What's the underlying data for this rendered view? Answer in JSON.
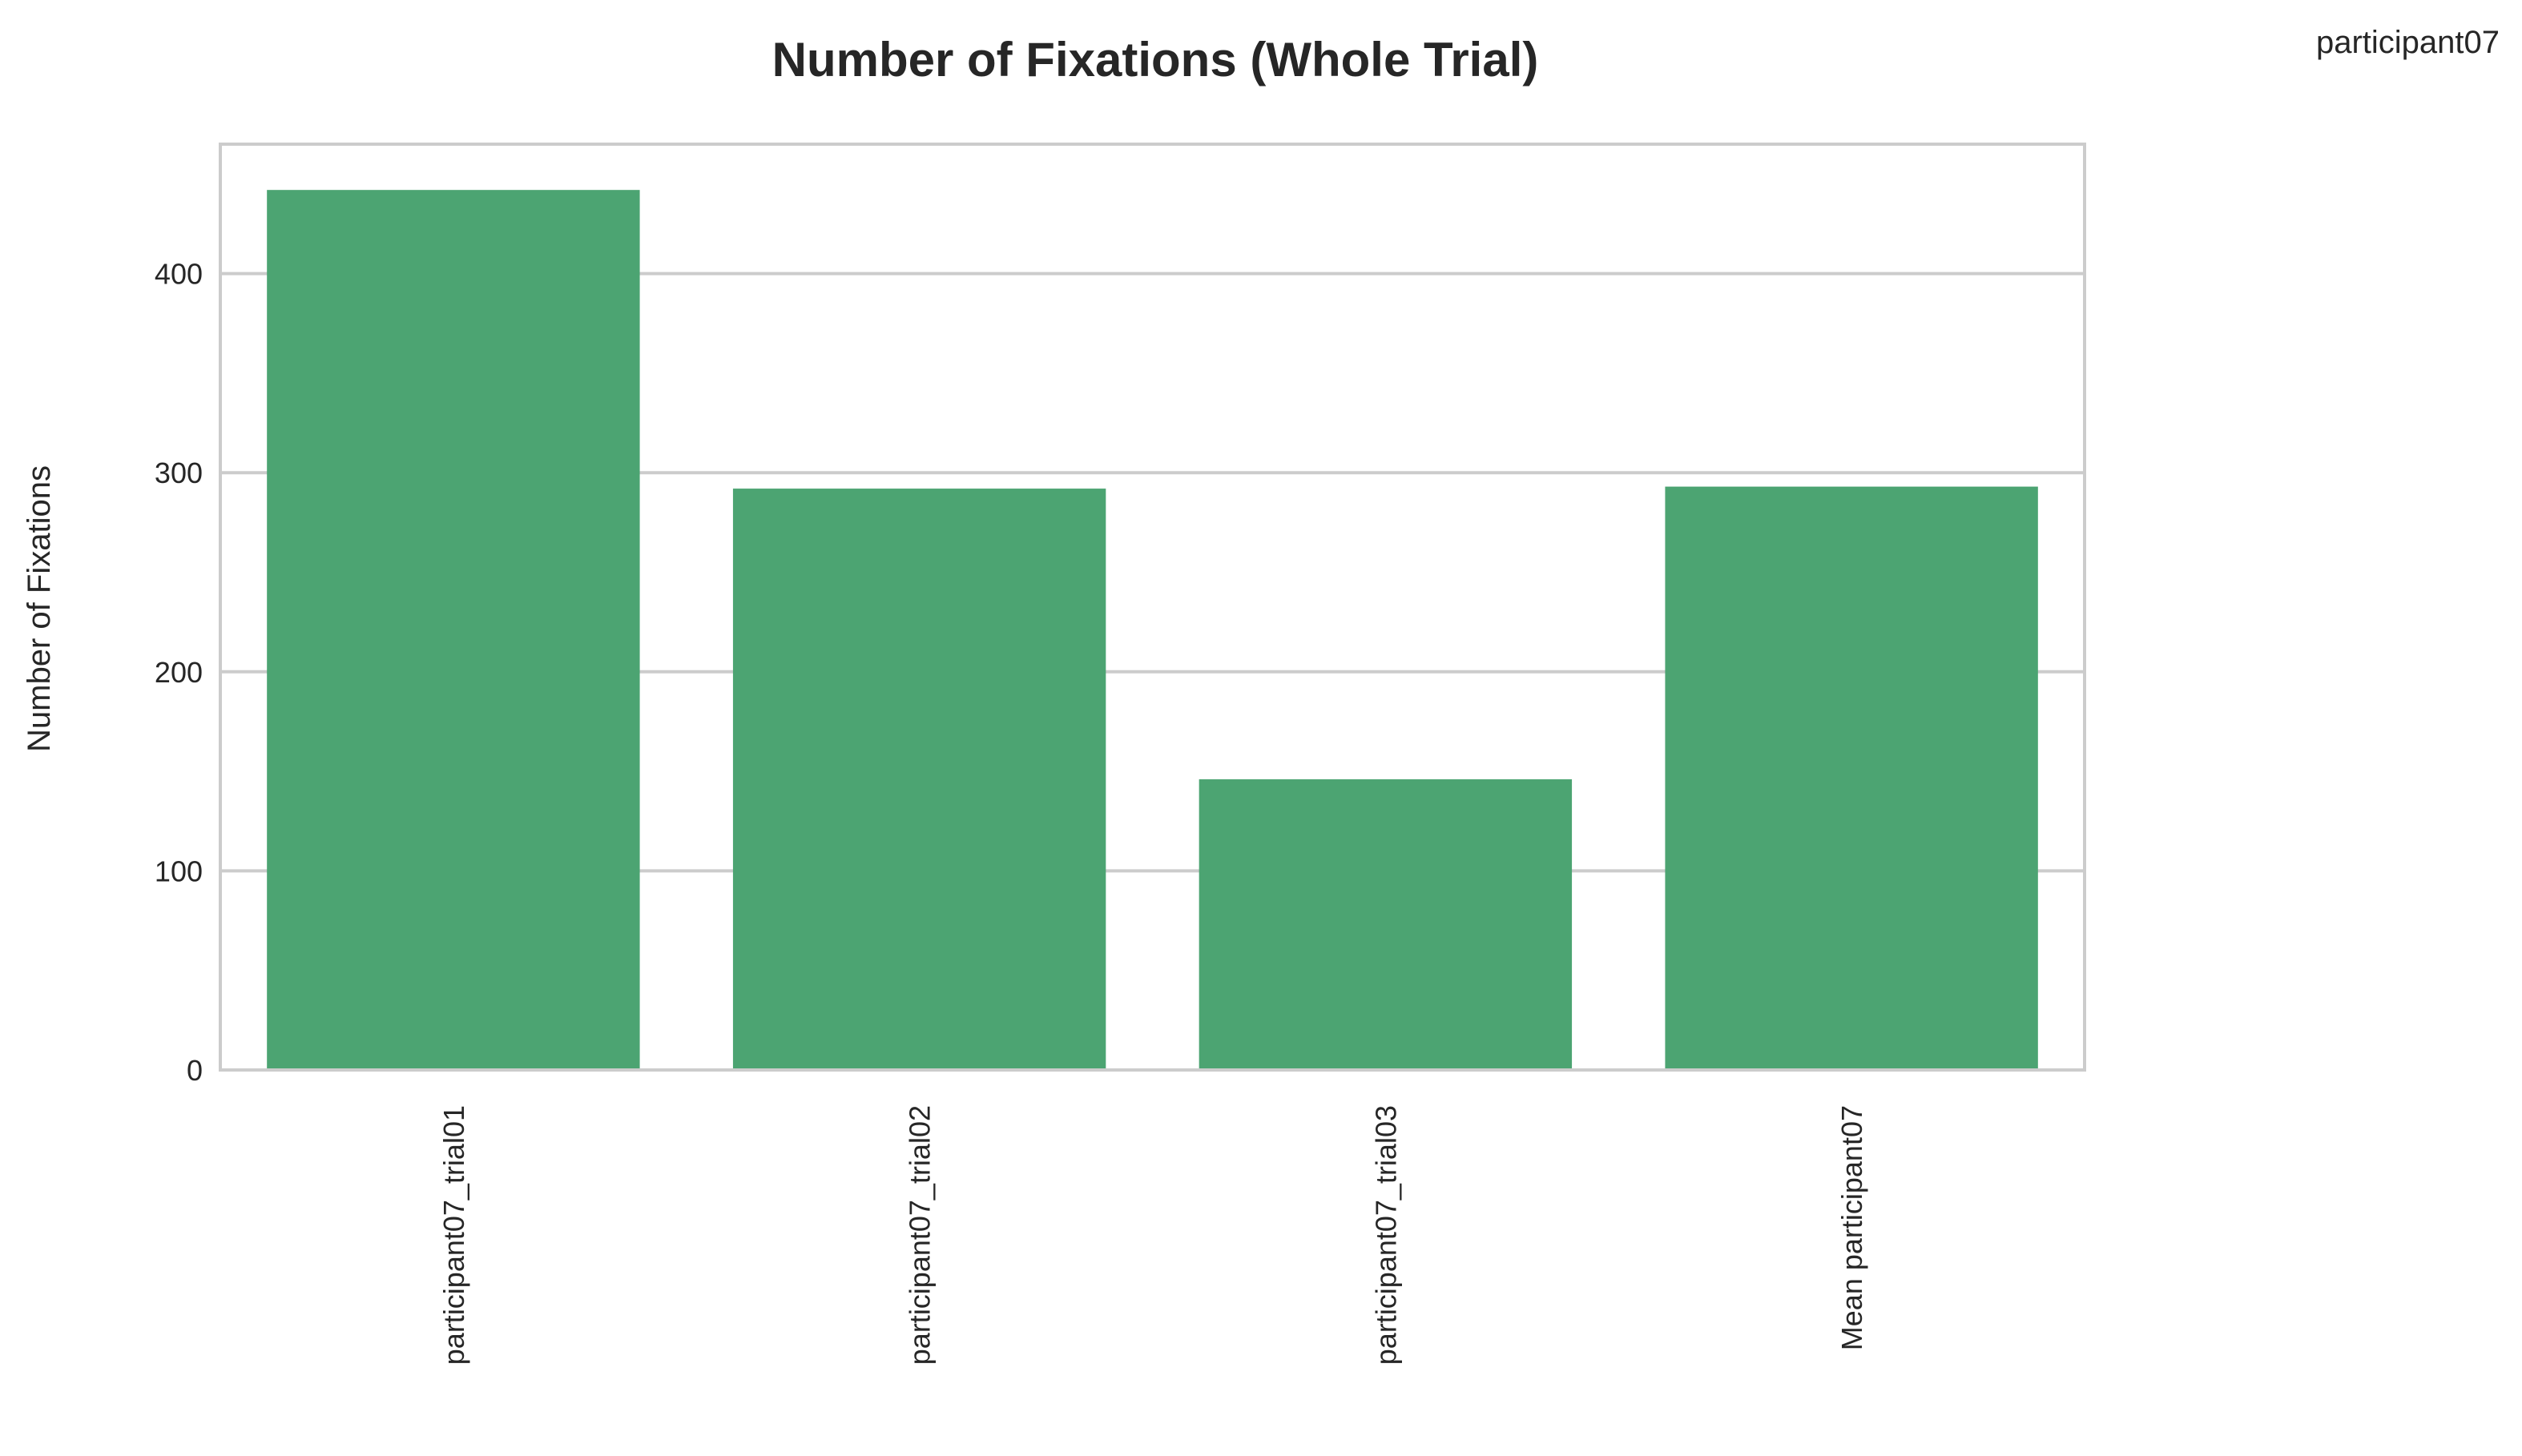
{
  "corner_label": "participant07",
  "chart_data": {
    "type": "bar",
    "title": "Number of Fixations (Whole Trial)",
    "xlabel": "",
    "ylabel": "Number of Fixations",
    "categories": [
      "participant07_trial01",
      "participant07_trial02",
      "participant07_trial03",
      "Mean participant07"
    ],
    "values": [
      442,
      292,
      146,
      293
    ],
    "ylim": [
      0,
      465
    ],
    "yticks": [
      0,
      100,
      200,
      300,
      400
    ],
    "grid": true,
    "bar_color": "#4ca472",
    "grid_color": "#cccccc",
    "spine_color": "#cccccc"
  }
}
